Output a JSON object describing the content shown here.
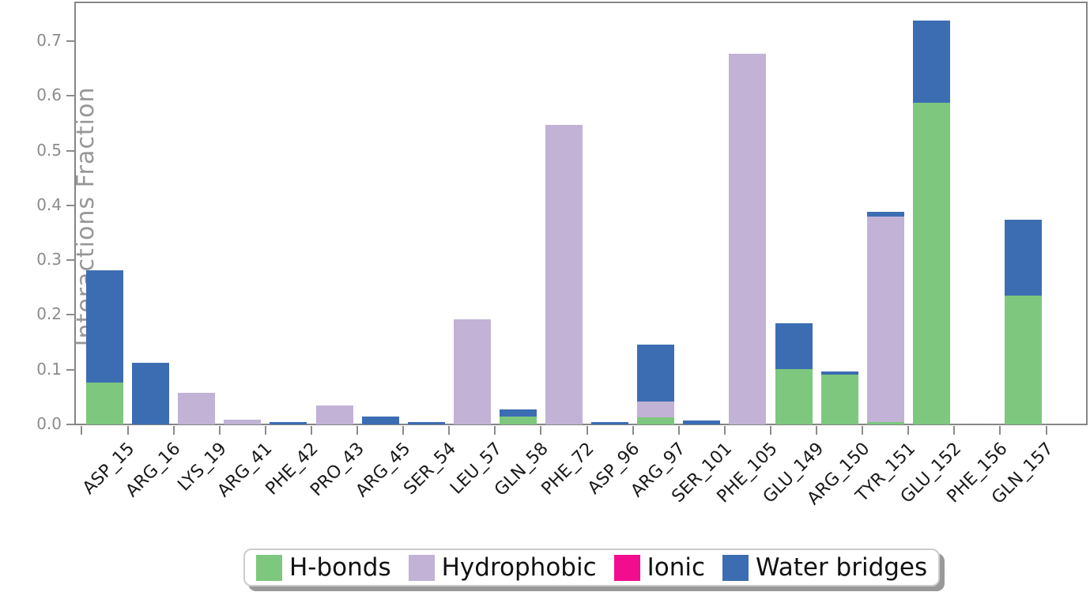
{
  "chart_data": {
    "type": "bar",
    "stacked": true,
    "title": "",
    "xlabel": "",
    "ylabel": "Interactions Fraction",
    "ylim": [
      0,
      0.771
    ],
    "ytick_labels": [
      "0.0",
      "0.1",
      "0.2",
      "0.3",
      "0.4",
      "0.5",
      "0.6",
      "0.7"
    ],
    "grid": false,
    "legend_position": "bottom-center",
    "categories": [
      "ASP_15",
      "ARG_16",
      "LYS_19",
      "ARG_41",
      "PHE_42",
      "PRO_43",
      "ARG_45",
      "SER_54",
      "LEU_57",
      "GLN_58",
      "PHE_72",
      "ASP_96",
      "ARG_97",
      "SER_101",
      "PHE_105",
      "GLU_149",
      "ARG_150",
      "TYR_151",
      "GLU_152",
      "PHE_156",
      "GLN_157"
    ],
    "series": [
      {
        "name": "H-bonds",
        "color": "#7dc87e",
        "values": [
          0.077,
          0,
          0,
          0,
          0,
          0,
          0,
          0,
          0,
          0.015,
          0,
          0,
          0.013,
          0,
          0,
          0.101,
          0.091,
          0.004,
          0.588,
          0,
          0.235
        ]
      },
      {
        "name": "Hydrophobic",
        "color": "#c1b2d6",
        "values": [
          0,
          0,
          0.057,
          0.008,
          0,
          0.034,
          0,
          0,
          0.192,
          0,
          0.547,
          0,
          0.029,
          0,
          0.677,
          0,
          0,
          0.376,
          0,
          0,
          0
        ]
      },
      {
        "name": "Ionic",
        "color": "#f20d8e",
        "values": [
          0,
          0,
          0,
          0,
          0,
          0,
          0,
          0,
          0,
          0,
          0,
          0,
          0,
          0,
          0,
          0,
          0,
          0,
          0,
          0,
          0
        ]
      },
      {
        "name": "Water bridges",
        "color": "#3c6db3",
        "values": [
          0.204,
          0.112,
          0,
          0,
          0.005,
          0,
          0.014,
          0.005,
          0,
          0.013,
          0,
          0.004,
          0.104,
          0.007,
          0,
          0.083,
          0.006,
          0.008,
          0.149,
          0,
          0.139
        ]
      }
    ],
    "axis_color": "#868686",
    "tick_color": "#8c8c8c",
    "ytick_label_color": "#8c8c8c",
    "xtick_label_color": "#1a1a1a",
    "ylabel_color": "#979797"
  }
}
